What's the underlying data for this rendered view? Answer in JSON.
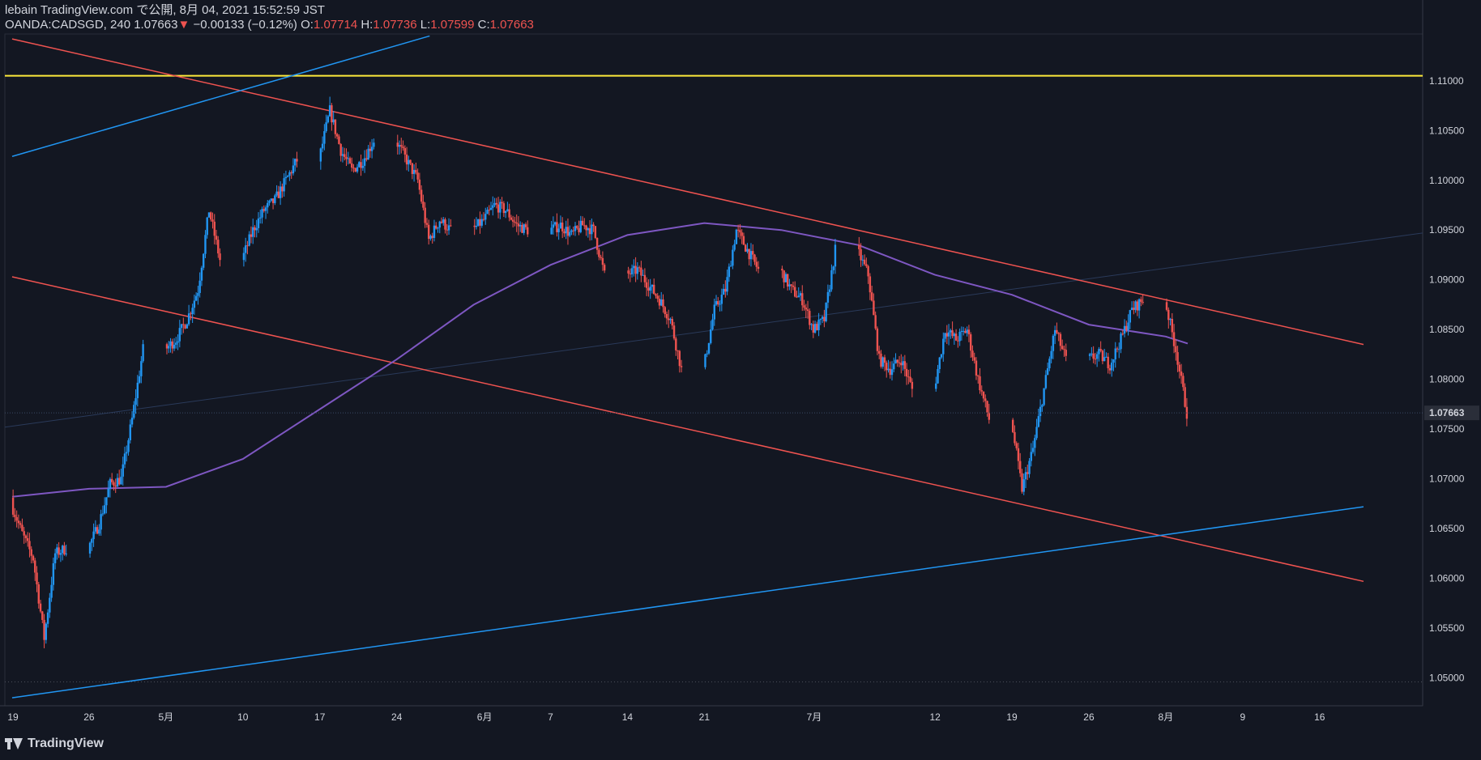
{
  "header": {
    "publish_line": "lebain TradingView.com で公開, 8月 04, 2021 15:52:59 JST",
    "symbol_interval": "OANDA:CADSGD, 240",
    "last_price": "1.07663",
    "change_arrow": "▼",
    "change": "−0.00133 (−0.12%)",
    "o_label": "O:",
    "o_value": "1.07714",
    "h_label": "H:",
    "h_value": "1.07736",
    "l_label": "L:",
    "l_value": "1.07599",
    "c_label": "C:",
    "c_value": "1.07663"
  },
  "footer": {
    "brand": "TradingView",
    "logo_icon": "tradingview-logo-icon"
  },
  "colors": {
    "background": "#131722",
    "up": "#2196f3",
    "down": "#ef5350",
    "ma": "#7e57c2",
    "resistance": "#ffeb3b",
    "channel_red": "#ef5350",
    "channel_blue": "#2196f3",
    "text": "#d1d4dc",
    "price_tag_bg": "#2a2e39"
  },
  "chart_data": {
    "type": "candlestick",
    "symbol": "OANDA:CADSGD",
    "interval": "240",
    "x_tick_labels": [
      "19",
      "26",
      "5月",
      "10",
      "17",
      "24",
      "6月",
      "7",
      "14",
      "21",
      "7月",
      "12",
      "19",
      "26",
      "8月",
      "9",
      "16"
    ],
    "y_tick_labels": [
      "1.11000",
      "1.10500",
      "1.10000",
      "1.09500",
      "1.09000",
      "1.08500",
      "1.08000",
      "1.07500",
      "1.07000",
      "1.06500",
      "1.06000",
      "1.05500",
      "1.05000"
    ],
    "y_range": [
      1.0472,
      1.1147
    ],
    "current_price_label": "1.07663",
    "current_price": 1.07663,
    "ohlc_last": {
      "open": 1.07714,
      "high": 1.07736,
      "low": 1.07599,
      "close": 1.07663
    },
    "daily_path": [
      [
        "2021-04-19",
        1.0675
      ],
      [
        "2021-04-20",
        1.0645
      ],
      [
        "2021-04-21",
        1.062
      ],
      [
        "2021-04-22",
        1.054
      ],
      [
        "2021-04-23",
        1.0625
      ],
      [
        "2021-04-26",
        1.063
      ],
      [
        "2021-04-27",
        1.0655
      ],
      [
        "2021-04-28",
        1.0695
      ],
      [
        "2021-04-29",
        1.07
      ],
      [
        "2021-04-30",
        1.076
      ],
      [
        "2021-05-03",
        1.083
      ],
      [
        "2021-05-04",
        1.084
      ],
      [
        "2021-05-05",
        1.086
      ],
      [
        "2021-05-06",
        1.089
      ],
      [
        "2021-05-07",
        1.097
      ],
      [
        "2021-05-10",
        1.092
      ],
      [
        "2021-05-11",
        1.095
      ],
      [
        "2021-05-12",
        1.097
      ],
      [
        "2021-05-13",
        1.098
      ],
      [
        "2021-05-14",
        1.1
      ],
      [
        "2021-05-17",
        1.102
      ],
      [
        "2021-05-18",
        1.107
      ],
      [
        "2021-05-19",
        1.103
      ],
      [
        "2021-05-20",
        1.101
      ],
      [
        "2021-05-21",
        1.102
      ],
      [
        "2021-05-24",
        1.104
      ],
      [
        "2021-05-25",
        1.102
      ],
      [
        "2021-05-26",
        1.1
      ],
      [
        "2021-05-27",
        1.094
      ],
      [
        "2021-05-28",
        1.096
      ],
      [
        "2021-05-31",
        1.095
      ],
      [
        "2021-06-01",
        1.096
      ],
      [
        "2021-06-02",
        1.0975
      ],
      [
        "2021-06-03",
        1.097
      ],
      [
        "2021-06-04",
        1.0955
      ],
      [
        "2021-06-07",
        1.095
      ],
      [
        "2021-06-08",
        1.0955
      ],
      [
        "2021-06-09",
        1.0945
      ],
      [
        "2021-06-10",
        1.0955
      ],
      [
        "2021-06-11",
        1.095
      ],
      [
        "2021-06-14",
        1.0905
      ],
      [
        "2021-06-15",
        1.091
      ],
      [
        "2021-06-16",
        1.0895
      ],
      [
        "2021-06-17",
        1.088
      ],
      [
        "2021-06-18",
        1.086
      ],
      [
        "2021-06-21",
        1.081
      ],
      [
        "2021-06-22",
        1.087
      ],
      [
        "2021-06-23",
        1.089
      ],
      [
        "2021-06-24",
        1.095
      ],
      [
        "2021-06-25",
        1.093
      ],
      [
        "2021-06-28",
        1.091
      ],
      [
        "2021-06-29",
        1.089
      ],
      [
        "2021-06-30",
        1.088
      ],
      [
        "2021-07-01",
        1.085
      ],
      [
        "2021-07-02",
        1.086
      ],
      [
        "2021-07-05",
        1.093
      ],
      [
        "2021-07-06",
        1.0905
      ],
      [
        "2021-07-07",
        1.082
      ],
      [
        "2021-07-08",
        1.081
      ],
      [
        "2021-07-09",
        1.082
      ],
      [
        "2021-07-12",
        1.079
      ],
      [
        "2021-07-13",
        1.085
      ],
      [
        "2021-07-14",
        1.084
      ],
      [
        "2021-07-15",
        1.085
      ],
      [
        "2021-07-16",
        1.08
      ],
      [
        "2021-07-19",
        1.076
      ],
      [
        "2021-07-20",
        1.069
      ],
      [
        "2021-07-21",
        1.073
      ],
      [
        "2021-07-22",
        1.079
      ],
      [
        "2021-07-23",
        1.085
      ],
      [
        "2021-07-26",
        1.082
      ],
      [
        "2021-07-27",
        1.0825
      ],
      [
        "2021-07-28",
        1.0815
      ],
      [
        "2021-07-29",
        1.084
      ],
      [
        "2021-07-30",
        1.087
      ],
      [
        "2021-08-02",
        1.088
      ],
      [
        "2021-08-03",
        1.083
      ],
      [
        "2021-08-04",
        1.07663
      ]
    ],
    "moving_average": [
      [
        "2021-04-19",
        1.0682
      ],
      [
        "2021-04-26",
        1.069
      ],
      [
        "2021-05-03",
        1.0692
      ],
      [
        "2021-05-10",
        1.072
      ],
      [
        "2021-05-17",
        1.077
      ],
      [
        "2021-05-24",
        1.082
      ],
      [
        "2021-05-31",
        1.0875
      ],
      [
        "2021-06-07",
        1.0915
      ],
      [
        "2021-06-14",
        1.0945
      ],
      [
        "2021-06-21",
        1.0957
      ],
      [
        "2021-06-28",
        1.095
      ],
      [
        "2021-07-05",
        1.0935
      ],
      [
        "2021-07-12",
        1.0905
      ],
      [
        "2021-07-19",
        1.0885
      ],
      [
        "2021-07-26",
        1.0855
      ],
      [
        "2021-08-02",
        1.0843
      ],
      [
        "2021-08-04",
        1.0836
      ]
    ],
    "horizontal_lines": [
      {
        "price": 1.1105,
        "color": "yellow"
      }
    ],
    "trend_lines": [
      {
        "color": "red",
        "from": [
          "2021-04-19",
          1.1142
        ],
        "to": [
          "2021-08-20",
          1.0835
        ]
      },
      {
        "color": "red",
        "from": [
          "2021-04-19",
          1.0903
        ],
        "to": [
          "2021-08-20",
          1.0597
        ]
      },
      {
        "color": "blue",
        "from": [
          "2021-04-19",
          1.1024
        ],
        "to": [
          "2021-05-27",
          1.1145
        ]
      },
      {
        "color": "blue",
        "from": [
          "2021-04-19",
          1.048
        ],
        "to": [
          "2021-08-20",
          1.0672
        ]
      }
    ]
  }
}
